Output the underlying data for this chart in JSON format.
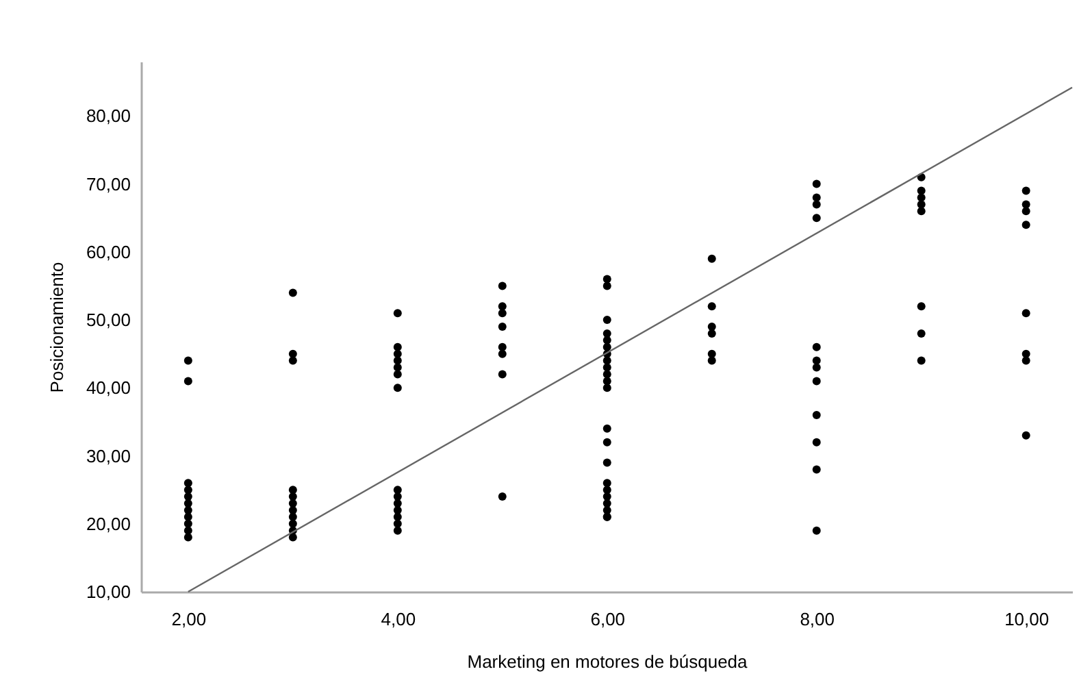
{
  "chart_data": {
    "type": "scatter",
    "xlabel": "Marketing en motores de búsqueda",
    "ylabel": "Posicionamiento",
    "xlim": [
      1.55,
      10.44
    ],
    "ylim": [
      10,
      88
    ],
    "xticks": [
      {
        "value": 2,
        "label": "2,00"
      },
      {
        "value": 4,
        "label": "4,00"
      },
      {
        "value": 6,
        "label": "6,00"
      },
      {
        "value": 8,
        "label": "8,00"
      },
      {
        "value": 10,
        "label": "10,00"
      }
    ],
    "yticks": [
      {
        "value": 10,
        "label": "10,00"
      },
      {
        "value": 20,
        "label": "20,00"
      },
      {
        "value": 30,
        "label": "30,00"
      },
      {
        "value": 40,
        "label": "40,00"
      },
      {
        "value": 50,
        "label": "50,00"
      },
      {
        "value": 60,
        "label": "60,00"
      },
      {
        "value": 70,
        "label": "70,00"
      },
      {
        "value": 80,
        "label": "80,00"
      }
    ],
    "grid": false,
    "series": [
      {
        "color": "#000000",
        "marker": "circle",
        "x": [
          2,
          2,
          2,
          2,
          2,
          2,
          2,
          2,
          2,
          2,
          2,
          3,
          3,
          3,
          3,
          3,
          3,
          3,
          3,
          3,
          3,
          3,
          4,
          4,
          4,
          4,
          4,
          4,
          4,
          4,
          4,
          4,
          4,
          4,
          4,
          4,
          5,
          5,
          5,
          5,
          5,
          5,
          5,
          5,
          6,
          6,
          6,
          6,
          6,
          6,
          6,
          6,
          6,
          6,
          6,
          6,
          6,
          6,
          6,
          6,
          6,
          6,
          6,
          6,
          6,
          6,
          7,
          7,
          7,
          7,
          7,
          7,
          8,
          8,
          8,
          8,
          8,
          8,
          8,
          8,
          8,
          8,
          8,
          8,
          9,
          9,
          9,
          9,
          9,
          9,
          9,
          9,
          10,
          10,
          10,
          10,
          10,
          10,
          10,
          10
        ],
        "values": [
          44,
          41,
          26,
          25,
          24,
          23,
          22,
          21,
          20,
          19,
          18,
          54,
          45,
          44,
          25,
          24,
          23,
          22,
          21,
          20,
          19,
          18,
          51,
          46,
          45,
          44,
          43,
          42,
          40,
          25,
          24,
          23,
          22,
          21,
          20,
          19,
          55,
          52,
          51,
          49,
          46,
          45,
          42,
          24,
          56,
          55,
          50,
          48,
          47,
          46,
          45,
          44,
          43,
          42,
          41,
          40,
          34,
          32,
          29,
          26,
          25,
          24,
          23,
          22,
          21,
          21,
          59,
          52,
          49,
          48,
          45,
          44,
          70,
          68,
          67,
          65,
          46,
          44,
          43,
          41,
          36,
          32,
          28,
          19,
          71,
          69,
          68,
          67,
          66,
          52,
          48,
          44,
          69,
          67,
          66,
          64,
          51,
          45,
          44,
          33
        ]
      },
      {
        "type": "line",
        "color": "#666666",
        "x": [
          2,
          10.44
        ],
        "values": [
          10,
          84.2
        ]
      }
    ]
  }
}
